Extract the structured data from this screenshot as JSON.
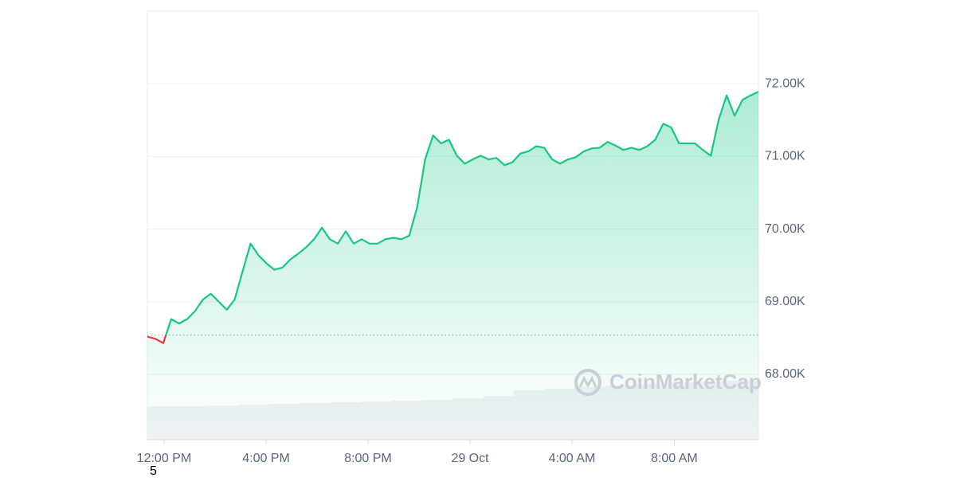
{
  "chart_data": {
    "type": "line",
    "color": "#16c784",
    "below_color": "#ea3943",
    "baseline": 68540,
    "grid": true,
    "ylim": [
      67100,
      73000
    ],
    "yticks": [
      {
        "value": 68000,
        "label": "68.00K"
      },
      {
        "value": 69000,
        "label": "69.00K"
      },
      {
        "value": 70000,
        "label": "70.00K"
      },
      {
        "value": 71000,
        "label": "71.00K"
      },
      {
        "value": 72000,
        "label": "72.00K"
      }
    ],
    "xlim": [
      0,
      77
    ],
    "xticks": [
      {
        "value": 2.1,
        "label": "12:00 PM"
      },
      {
        "value": 14.96,
        "label": "4:00 PM"
      },
      {
        "value": 27.8,
        "label": "8:00 PM"
      },
      {
        "value": 40.66,
        "label": "29 Oct"
      },
      {
        "value": 53.5,
        "label": "4:00 AM"
      },
      {
        "value": 66.4,
        "label": "8:00 AM"
      }
    ],
    "values": [
      68520,
      68490,
      68430,
      68760,
      68700,
      68760,
      68870,
      69030,
      69110,
      69000,
      68890,
      69030,
      69420,
      69800,
      69640,
      69530,
      69440,
      69470,
      69580,
      69660,
      69750,
      69860,
      70020,
      69860,
      69800,
      69970,
      69800,
      69860,
      69800,
      69800,
      69860,
      69880,
      69860,
      69910,
      70300,
      70960,
      71290,
      71180,
      71230,
      71010,
      70900,
      70960,
      71010,
      70960,
      70980,
      70880,
      70920,
      71040,
      71070,
      71140,
      71120,
      70960,
      70900,
      70960,
      70990,
      71070,
      71110,
      71120,
      71200,
      71150,
      71090,
      71120,
      71090,
      71140,
      71230,
      71450,
      71400,
      71180,
      71180,
      71180,
      71090,
      71010,
      71510,
      71840,
      71560,
      71780,
      71840,
      71890
    ],
    "volume": {
      "color": "#eff2f5",
      "vlim": [
        0,
        100
      ],
      "values": [
        42,
        42,
        43,
        44,
        45,
        46,
        47,
        48,
        49,
        50,
        52,
        55,
        62,
        64,
        66,
        68,
        70,
        72,
        73,
        74
      ]
    },
    "watermark": "CoinMarketCap",
    "footnote": "5"
  }
}
